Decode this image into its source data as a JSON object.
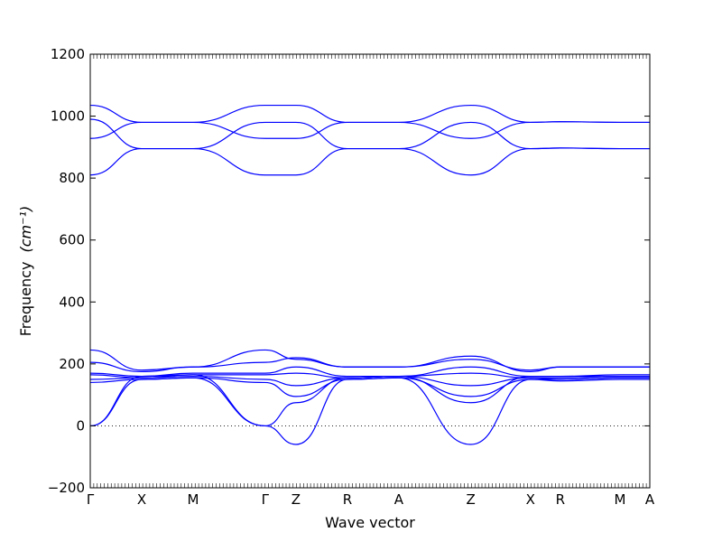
{
  "chart_data": {
    "type": "line",
    "title": "",
    "xlabel": "Wave vector",
    "ylabel": "Frequency",
    "ylabel_unit": "(cm⁻¹)",
    "ylim": [
      -200,
      1200
    ],
    "yticks": [
      -200,
      0,
      200,
      400,
      600,
      800,
      1000,
      1200
    ],
    "ytick_labels": [
      "−200",
      "0",
      "200",
      "400",
      "600",
      "800",
      "1000",
      "1200"
    ],
    "high_symmetry_points": [
      {
        "label": "Γ",
        "pos": 0.0
      },
      {
        "label": "X",
        "pos": 0.5
      },
      {
        "label": "M",
        "pos": 1.0
      },
      {
        "label": "Γ",
        "pos": 1.7
      },
      {
        "label": "Z",
        "pos": 2.0
      },
      {
        "label": "R",
        "pos": 2.5
      },
      {
        "label": "A",
        "pos": 3.0
      },
      {
        "label": "Z",
        "pos": 3.7
      },
      {
        "label": "X",
        "pos": 4.28
      },
      {
        "label": "R",
        "pos": 4.57
      },
      {
        "label": "M",
        "pos": 5.15
      },
      {
        "label": "A",
        "pos": 5.44
      }
    ],
    "zero_line": true,
    "line_color": "#0000ff",
    "series": [
      {
        "x": [
          0,
          0.5,
          1.0,
          1.7,
          2.0,
          2.5,
          3.0,
          3.7,
          4.28,
          4.57,
          5.15,
          5.44
        ],
        "values": [
          1035,
          980,
          980,
          1035,
          1035,
          980,
          980,
          1035,
          980,
          982,
          980,
          980
        ]
      },
      {
        "x": [
          0,
          0.5,
          1.0,
          1.7,
          2.0,
          2.5,
          3.0,
          3.7,
          4.28,
          4.57,
          5.15,
          5.44
        ],
        "values": [
          990,
          895,
          895,
          980,
          980,
          895,
          895,
          980,
          895,
          897,
          895,
          895
        ]
      },
      {
        "x": [
          0,
          0.5,
          1.0,
          1.7,
          2.0,
          2.5,
          3.0,
          3.7,
          4.28,
          4.57,
          5.15,
          5.44
        ],
        "values": [
          928,
          980,
          980,
          928,
          928,
          980,
          980,
          928,
          980,
          982,
          980,
          980
        ]
      },
      {
        "x": [
          0,
          0.5,
          1.0,
          1.7,
          2.0,
          2.5,
          3.0,
          3.7,
          4.28,
          4.57,
          5.15,
          5.44
        ],
        "values": [
          810,
          895,
          895,
          810,
          810,
          895,
          895,
          810,
          895,
          897,
          895,
          895
        ]
      },
      {
        "x": [
          0,
          0.5,
          1.0,
          1.7,
          2.0,
          2.5,
          3.0,
          3.7,
          4.28,
          4.57,
          5.15,
          5.44
        ],
        "values": [
          245,
          180,
          190,
          245,
          215,
          190,
          190,
          215,
          180,
          190,
          190,
          190
        ]
      },
      {
        "x": [
          0,
          0.5,
          1.0,
          1.7,
          2.0,
          2.5,
          3.0,
          3.7,
          4.28,
          4.57,
          5.15,
          5.44
        ],
        "values": [
          205,
          175,
          190,
          205,
          220,
          190,
          190,
          225,
          175,
          190,
          190,
          190
        ]
      },
      {
        "x": [
          0,
          0.5,
          1.0,
          1.7,
          2.0,
          2.5,
          3.0,
          3.7,
          4.28,
          4.57,
          5.15,
          5.44
        ],
        "values": [
          170,
          160,
          170,
          170,
          190,
          160,
          160,
          190,
          160,
          160,
          165,
          165
        ]
      },
      {
        "x": [
          0,
          0.5,
          1.0,
          1.7,
          2.0,
          2.5,
          3.0,
          3.7,
          4.28,
          4.57,
          5.15,
          5.44
        ],
        "values": [
          165,
          155,
          165,
          165,
          170,
          155,
          160,
          170,
          155,
          155,
          160,
          160
        ]
      },
      {
        "x": [
          0,
          0.5,
          1.0,
          1.7,
          2.0,
          2.5,
          3.0,
          3.7,
          4.28,
          4.57,
          5.15,
          5.44
        ],
        "values": [
          150,
          155,
          160,
          150,
          130,
          155,
          160,
          130,
          155,
          150,
          155,
          155
        ]
      },
      {
        "x": [
          0,
          0.5,
          1.0,
          1.7,
          2.0,
          2.5,
          3.0,
          3.7,
          4.28,
          4.57,
          5.15,
          5.44
        ],
        "values": [
          140,
          150,
          155,
          140,
          95,
          150,
          155,
          95,
          150,
          145,
          150,
          150
        ]
      },
      {
        "x": [
          0,
          0.5,
          1.0,
          1.7,
          2.0,
          2.5,
          3.0,
          3.7,
          4.28,
          4.57,
          5.15,
          5.44
        ],
        "values": [
          0,
          160,
          165,
          0,
          75,
          155,
          160,
          75,
          160,
          160,
          160,
          160
        ]
      },
      {
        "x": [
          0,
          0.5,
          1.0,
          1.7,
          2.0,
          2.5,
          3.0,
          3.7,
          4.28,
          4.57,
          5.15,
          5.44
        ],
        "values": [
          0,
          150,
          155,
          0,
          -60,
          150,
          155,
          -60,
          150,
          150,
          155,
          155
        ]
      }
    ]
  }
}
